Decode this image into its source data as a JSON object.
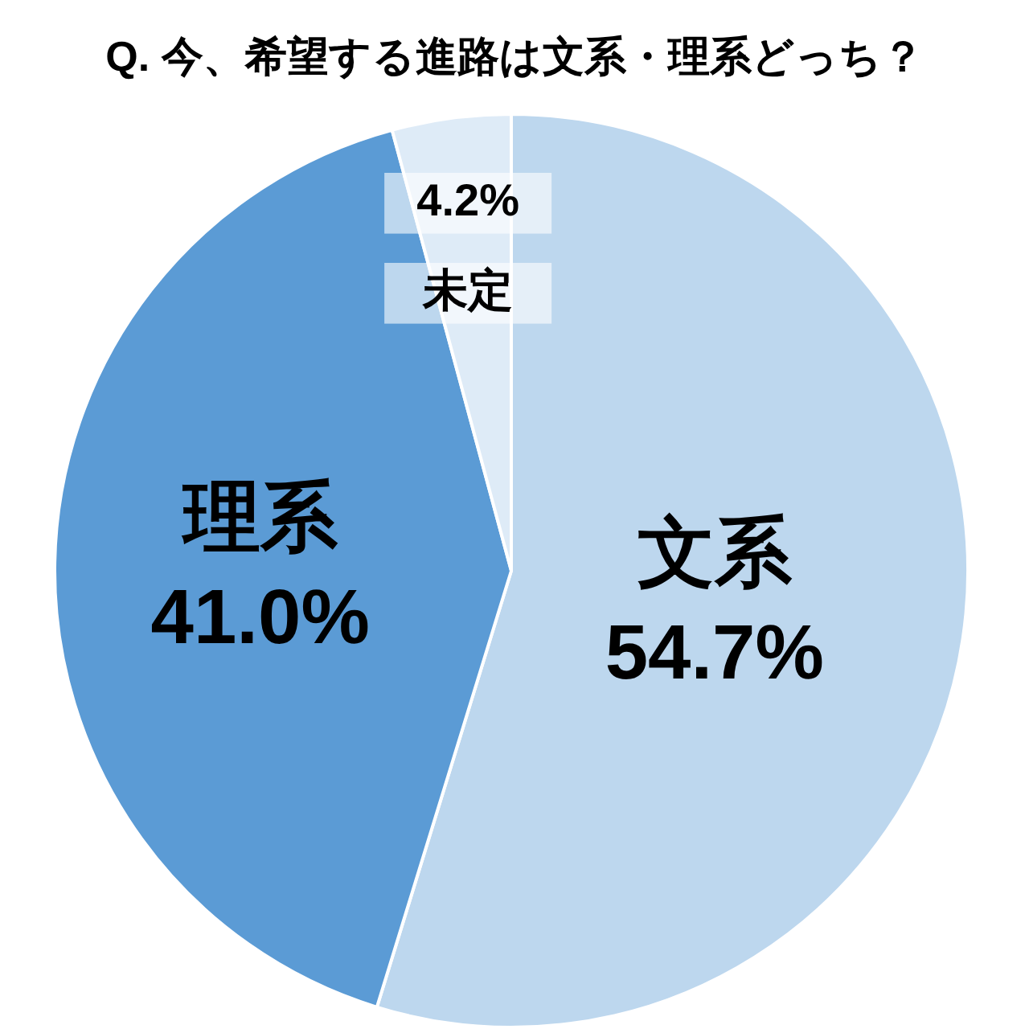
{
  "chart_data": {
    "type": "pie",
    "title": "Q. 今、希望する進路は文系・理系どっち？",
    "categories": [
      "文系",
      "理系",
      "未定"
    ],
    "values": [
      54.7,
      41.0,
      4.2
    ],
    "value_labels": [
      "54.7%",
      "41.0%",
      "4.2%"
    ],
    "colors": [
      "#bdd7ee",
      "#5b9bd5",
      "#deebf7"
    ]
  }
}
